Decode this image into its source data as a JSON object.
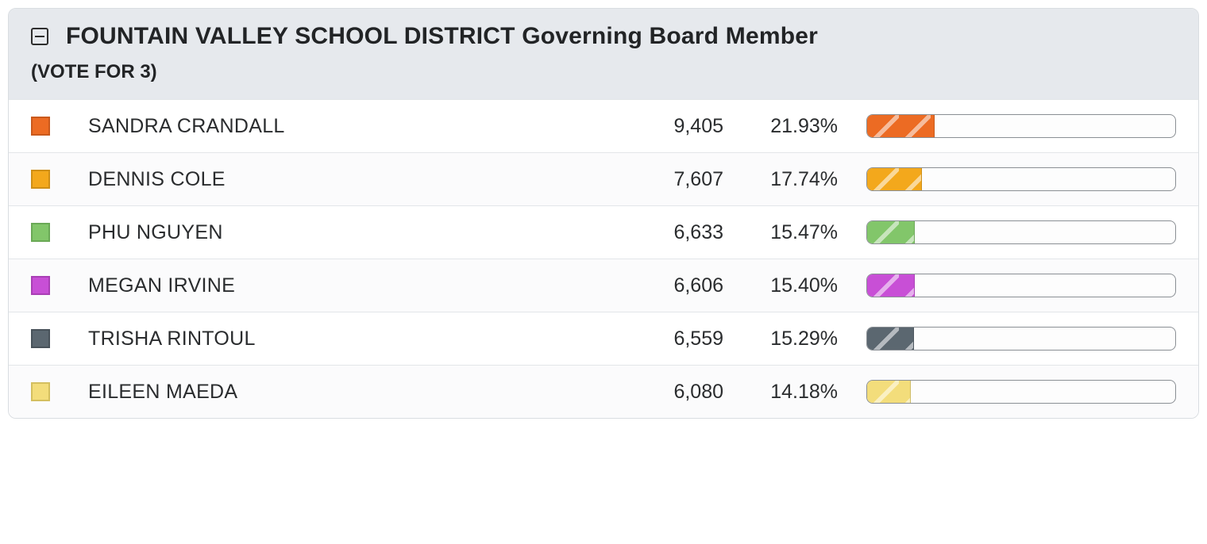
{
  "contest": {
    "title": "FOUNTAIN VALLEY SCHOOL DISTRICT Governing Board Member",
    "subtitle": "(VOTE FOR 3)"
  },
  "colors": {
    "header_bg": "#e6e9ed",
    "border": "#d9dde1",
    "text": "#222426",
    "bar_border": "#8a8f94"
  },
  "candidates": [
    {
      "name": "SANDRA CRANDALL",
      "votes": "9,405",
      "percent_label": "21.93%",
      "percent": 21.93,
      "color_fill": "#ec6b23",
      "color_border": "#c9591c"
    },
    {
      "name": "DENNIS COLE",
      "votes": "7,607",
      "percent_label": "17.74%",
      "percent": 17.74,
      "color_fill": "#f3a81c",
      "color_border": "#cf8f17"
    },
    {
      "name": "PHU NGUYEN",
      "votes": "6,633",
      "percent_label": "15.47%",
      "percent": 15.47,
      "color_fill": "#82c66a",
      "color_border": "#6aa956"
    },
    {
      "name": "MEGAN IRVINE",
      "votes": "6,606",
      "percent_label": "15.40%",
      "percent": 15.4,
      "color_fill": "#c84fd6",
      "color_border": "#a93fb5"
    },
    {
      "name": "TRISHA RINTOUL",
      "votes": "6,559",
      "percent_label": "15.29%",
      "percent": 15.29,
      "color_fill": "#5b6770",
      "color_border": "#48525a"
    },
    {
      "name": "EILEEN MAEDA",
      "votes": "6,080",
      "percent_label": "14.18%",
      "percent": 14.18,
      "color_fill": "#f3dd7b",
      "color_border": "#d4bf5f"
    }
  ]
}
